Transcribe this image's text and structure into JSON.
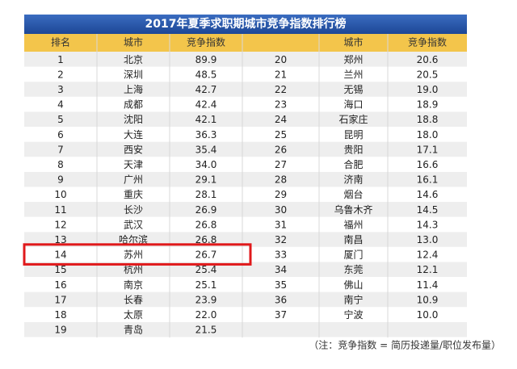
{
  "title": "2017年夏季求职期城市竞争指数排行榜",
  "table": {
    "left_headers": [
      "排名",
      "城市",
      "竞争指数"
    ],
    "right_headers": [
      "城市",
      "竞争指数"
    ],
    "left_rows": [
      [
        "1",
        "北京",
        "89.9"
      ],
      [
        "2",
        "深圳",
        "48.5"
      ],
      [
        "3",
        "上海",
        "42.7"
      ],
      [
        "4",
        "成都",
        "42.4"
      ],
      [
        "5",
        "沈阳",
        "42.1"
      ],
      [
        "6",
        "大连",
        "36.3"
      ],
      [
        "7",
        "西安",
        "35.4"
      ],
      [
        "8",
        "天津",
        "34.0"
      ],
      [
        "9",
        "广州",
        "29.1"
      ],
      [
        "10",
        "重庆",
        "28.1"
      ],
      [
        "11",
        "长沙",
        "26.9"
      ],
      [
        "12",
        "武汉",
        "26.8"
      ],
      [
        "13",
        "哈尔滨",
        "26.8"
      ],
      [
        "14",
        "苏州",
        "26.7"
      ],
      [
        "15",
        "杭州",
        "25.4"
      ],
      [
        "16",
        "南京",
        "25.1"
      ],
      [
        "17",
        "长春",
        "23.9"
      ],
      [
        "18",
        "太原",
        "22.0"
      ],
      [
        "19",
        "青岛",
        "21.5"
      ]
    ],
    "right_rows": [
      [
        "20",
        "郑州",
        "20.6"
      ],
      [
        "21",
        "兰州",
        "20.5"
      ],
      [
        "22",
        "无锡",
        "19.0"
      ],
      [
        "23",
        "海口",
        "18.9"
      ],
      [
        "24",
        "石家庄",
        "18.8"
      ],
      [
        "25",
        "昆明",
        "18.0"
      ],
      [
        "26",
        "贵阳",
        "17.1"
      ],
      [
        "27",
        "合肥",
        "16.6"
      ],
      [
        "28",
        "济南",
        "16.1"
      ],
      [
        "29",
        "烟台",
        "14.6"
      ],
      [
        "30",
        "乌鲁木齐",
        "14.5"
      ],
      [
        "31",
        "福州",
        "14.3"
      ],
      [
        "32",
        "南昌",
        "13.0"
      ],
      [
        "33",
        "厦门",
        "12.4"
      ],
      [
        "34",
        "东莞",
        "12.1"
      ],
      [
        "35",
        "佛山",
        "11.4"
      ],
      [
        "36",
        "南宁",
        "10.9"
      ],
      [
        "37",
        "宁波",
        "10.0"
      ]
    ]
  },
  "note": "（注：竞争指数 = 简历投递量/职位发布量）"
}
